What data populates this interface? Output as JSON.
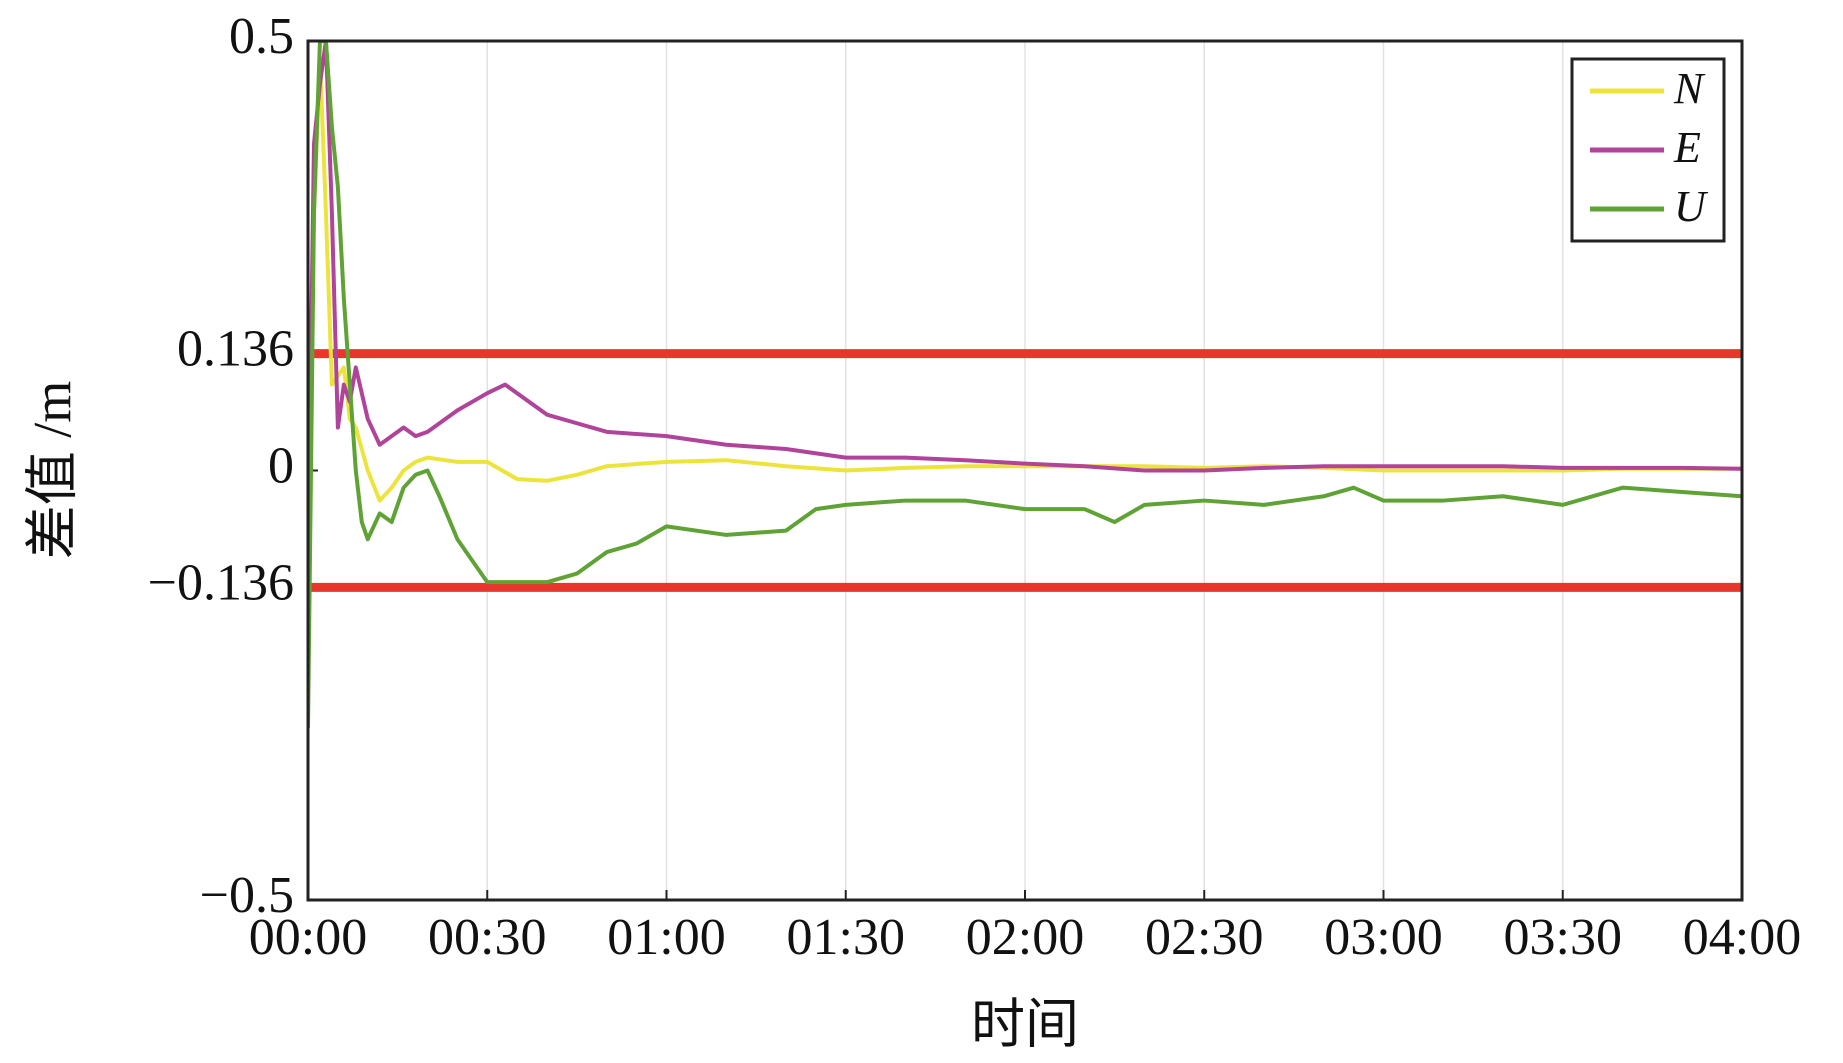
{
  "chart_data": {
    "type": "line",
    "x_label": "时间",
    "y_label": "差值 /m",
    "xlim": [
      0,
      240
    ],
    "xticks": [
      {
        "value": 0,
        "label": "00:00"
      },
      {
        "value": 30,
        "label": "00:30"
      },
      {
        "value": 60,
        "label": "01:00"
      },
      {
        "value": 90,
        "label": "01:30"
      },
      {
        "value": 120,
        "label": "02:00"
      },
      {
        "value": 150,
        "label": "02:30"
      },
      {
        "value": 180,
        "label": "03:00"
      },
      {
        "value": 210,
        "label": "03:30"
      },
      {
        "value": 240,
        "label": "04:00"
      }
    ],
    "ylim": [
      -0.5,
      0.5
    ],
    "yticks": [
      {
        "value": -0.5,
        "label": "−0.5"
      },
      {
        "value": -0.136,
        "label": "−0.136"
      },
      0,
      0.136,
      0.5
    ],
    "grid": "x",
    "legend": "upper right",
    "reference_lines": [
      {
        "value": 0.136,
        "color": "#e8362d"
      },
      {
        "value": -0.136,
        "color": "#e8362d"
      }
    ],
    "series": [
      {
        "name": "N",
        "color": "#ece43c",
        "x": [
          0,
          1,
          2,
          3,
          4,
          5,
          6,
          7,
          8,
          10,
          12,
          14,
          16,
          18,
          20,
          25,
          30,
          35,
          40,
          45,
          50,
          60,
          70,
          80,
          90,
          100,
          110,
          120,
          130,
          140,
          150,
          160,
          170,
          180,
          190,
          200,
          210,
          220,
          230,
          240
        ],
        "values": [
          -0.1,
          0.3,
          0.48,
          0.3,
          0.1,
          0.11,
          0.12,
          0.06,
          0.05,
          0.0,
          -0.035,
          -0.02,
          0.0,
          0.01,
          0.015,
          0.01,
          0.01,
          -0.01,
          -0.012,
          -0.005,
          0.005,
          0.01,
          0.012,
          0.005,
          0.0,
          0.003,
          0.005,
          0.005,
          0.005,
          0.005,
          0.003,
          0.005,
          0.003,
          0.0,
          0.0,
          0.0,
          0.0,
          0.002,
          0.002,
          0.002
        ]
      },
      {
        "name": "E",
        "color": "#b0449a",
        "x": [
          0,
          1,
          2,
          3,
          4,
          5,
          6,
          7,
          8,
          10,
          12,
          14,
          16,
          18,
          20,
          25,
          30,
          33,
          35,
          40,
          45,
          50,
          60,
          70,
          80,
          90,
          100,
          110,
          120,
          130,
          140,
          150,
          160,
          170,
          180,
          190,
          200,
          210,
          220,
          230,
          240
        ],
        "values": [
          -0.1,
          0.38,
          0.45,
          0.5,
          0.3,
          0.05,
          0.1,
          0.08,
          0.12,
          0.06,
          0.03,
          0.04,
          0.05,
          0.04,
          0.045,
          0.07,
          0.09,
          0.1,
          0.09,
          0.065,
          0.055,
          0.045,
          0.04,
          0.03,
          0.025,
          0.015,
          0.015,
          0.012,
          0.008,
          0.005,
          0.0,
          0.0,
          0.003,
          0.005,
          0.005,
          0.005,
          0.005,
          0.003,
          0.003,
          0.003,
          0.002
        ]
      },
      {
        "name": "U",
        "color": "#5fa235",
        "x": [
          0,
          1,
          2,
          3,
          4,
          5,
          6,
          7,
          8,
          9,
          10,
          12,
          14,
          16,
          18,
          20,
          22,
          25,
          30,
          35,
          40,
          45,
          50,
          55,
          60,
          70,
          80,
          85,
          90,
          100,
          110,
          120,
          130,
          135,
          140,
          150,
          160,
          170,
          175,
          180,
          190,
          200,
          210,
          220,
          230,
          240
        ],
        "values": [
          -0.3,
          0.3,
          0.5,
          0.5,
          0.4,
          0.33,
          0.2,
          0.1,
          0.0,
          -0.06,
          -0.08,
          -0.05,
          -0.06,
          -0.02,
          -0.005,
          0.0,
          -0.03,
          -0.08,
          -0.13,
          -0.13,
          -0.13,
          -0.12,
          -0.095,
          -0.085,
          -0.065,
          -0.075,
          -0.07,
          -0.045,
          -0.04,
          -0.035,
          -0.035,
          -0.045,
          -0.045,
          -0.06,
          -0.04,
          -0.035,
          -0.04,
          -0.03,
          -0.02,
          -0.035,
          -0.035,
          -0.03,
          -0.04,
          -0.02,
          -0.025,
          -0.03
        ]
      }
    ]
  }
}
